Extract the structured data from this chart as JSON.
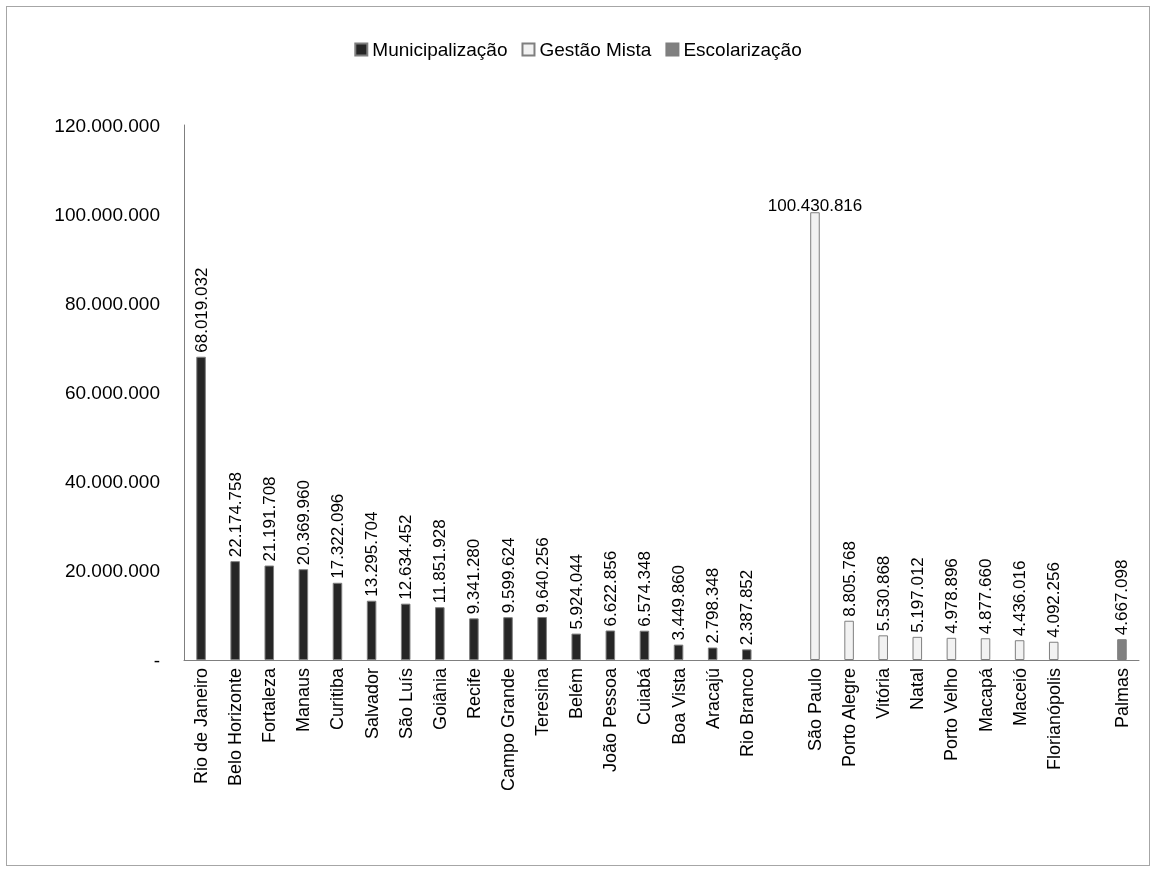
{
  "chart_data": {
    "type": "bar",
    "categories": [
      "Rio de Janeiro",
      "Belo Horizonte",
      "Fortaleza",
      "Manaus",
      "Curitiba",
      "Salvador",
      "São Luís",
      "Goiânia",
      "Recife",
      "Campo Grande",
      "Teresina",
      "Belém",
      "João Pessoa",
      "Cuiabá",
      "Boa Vista",
      "Aracajú",
      "Rio Branco",
      null,
      "São Paulo",
      "Porto Alegre",
      "Vitória",
      "Natal",
      "Porto Velho",
      "Macapá",
      "Maceió",
      "Florianópolis",
      null,
      "Palmas"
    ],
    "series": [
      {
        "name": "Municipalização",
        "color": "#262626",
        "values": [
          68019032,
          22174758,
          21191708,
          20369960,
          17322096,
          13295704,
          12634452,
          11851928,
          9341280,
          9599624,
          9640256,
          5924044,
          6622856,
          6574348,
          3449860,
          2798348,
          2387852,
          null,
          null,
          null,
          null,
          null,
          null,
          null,
          null,
          null,
          null,
          null
        ],
        "value_labels": [
          "68.019.032",
          "22.174.758",
          "21.191.708",
          "20.369.960",
          "17.322.096",
          "13.295.704",
          "12.634.452",
          "11.851.928",
          "9.341.280",
          "9.599.624",
          "9.640.256",
          "5.924.044",
          "6.622.856",
          "6.574.348",
          "3.449.860",
          "2.798.348",
          "2.387.852",
          null,
          null,
          null,
          null,
          null,
          null,
          null,
          null,
          null,
          null,
          null
        ]
      },
      {
        "name": "Gestão Mista",
        "color": "#f2f2f2",
        "values": [
          null,
          null,
          null,
          null,
          null,
          null,
          null,
          null,
          null,
          null,
          null,
          null,
          null,
          null,
          null,
          null,
          null,
          null,
          100430816,
          8805768,
          5530868,
          5197012,
          4978896,
          4877660,
          4436016,
          4092256,
          null,
          null
        ],
        "value_labels": [
          null,
          null,
          null,
          null,
          null,
          null,
          null,
          null,
          null,
          null,
          null,
          null,
          null,
          null,
          null,
          null,
          null,
          null,
          "100.430.816",
          "8.805.768",
          "5.530.868",
          "5.197.012",
          "4.978.896",
          "4.877.660",
          "4.436.016",
          "4.092.256",
          null,
          null
        ]
      },
      {
        "name": "Escolarização",
        "color": "#808080",
        "values": [
          null,
          null,
          null,
          null,
          null,
          null,
          null,
          null,
          null,
          null,
          null,
          null,
          null,
          null,
          null,
          null,
          null,
          null,
          null,
          null,
          null,
          null,
          null,
          null,
          null,
          null,
          null,
          4667098
        ],
        "value_labels": [
          null,
          null,
          null,
          null,
          null,
          null,
          null,
          null,
          null,
          null,
          null,
          null,
          null,
          null,
          null,
          null,
          null,
          null,
          null,
          null,
          null,
          null,
          null,
          null,
          null,
          null,
          null,
          "4.667.098"
        ]
      }
    ],
    "ylim": [
      0,
      120000000
    ],
    "yticks": [
      {
        "value": 0,
        "label": "-"
      },
      {
        "value": 20000000,
        "label": "20.000.000"
      },
      {
        "value": 40000000,
        "label": "40.000.000"
      },
      {
        "value": 60000000,
        "label": "60.000.000"
      },
      {
        "value": 80000000,
        "label": "80.000.000"
      },
      {
        "value": 100000000,
        "label": "100.000.000"
      },
      {
        "value": 120000000,
        "label": "120.000.000"
      }
    ],
    "legend": "top",
    "grid": false
  }
}
